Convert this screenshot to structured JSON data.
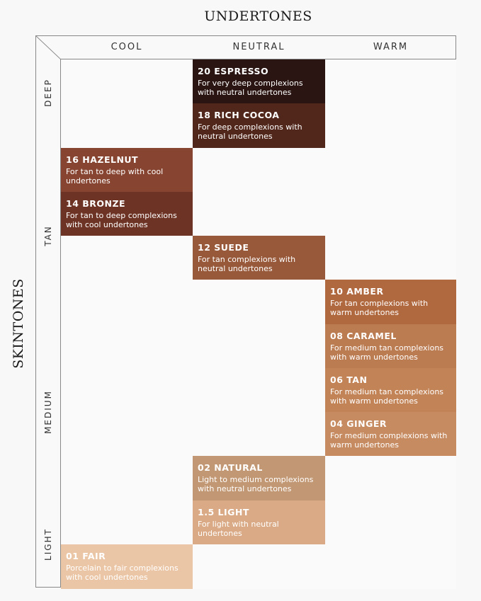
{
  "header": {
    "undertones_title": "UNDERTONES",
    "skintones_title": "SKINTONES"
  },
  "columns": [
    "COOL",
    "NEUTRAL",
    "WARM"
  ],
  "row_groups": [
    {
      "label": "DEEP",
      "rows": [
        0,
        2
      ]
    },
    {
      "label": "TAN",
      "rows": [
        2,
        6
      ]
    },
    {
      "label": "MEDIUM",
      "rows": [
        6,
        10
      ]
    },
    {
      "label": "LIGHT",
      "rows": [
        10,
        12
      ]
    }
  ],
  "shades": [
    {
      "row": 0,
      "col": 1,
      "name": "20 ESPRESSO",
      "desc": "For very deep complexions with neutral undertones",
      "color": "#2a1512"
    },
    {
      "row": 1,
      "col": 1,
      "name": "18 RICH COCOA",
      "desc": "For deep complexions with neutral undertones",
      "color": "#52271b"
    },
    {
      "row": 2,
      "col": 0,
      "name": "16 HAZELNUT",
      "desc": "For tan to deep with cool undertones",
      "color": "#874430"
    },
    {
      "row": 3,
      "col": 0,
      "name": "14 BRONZE",
      "desc": "For tan to deep complexions with cool undertones",
      "color": "#6d3425"
    },
    {
      "row": 4,
      "col": 1,
      "name": "12 SUEDE",
      "desc": "For tan complexions with neutral undertones",
      "color": "#98593a"
    },
    {
      "row": 5,
      "col": 2,
      "name": "10 AMBER",
      "desc": "For tan complexions with warm undertones",
      "color": "#b0683f"
    },
    {
      "row": 6,
      "col": 2,
      "name": "08 CARAMEL",
      "desc": "For medium tan complexions with warm undertones",
      "color": "#bc7c52"
    },
    {
      "row": 7,
      "col": 2,
      "name": "06 TAN",
      "desc": "For medium tan complexions with warm undertones",
      "color": "#c28357"
    },
    {
      "row": 8,
      "col": 2,
      "name": "04 GINGER",
      "desc": "For medium complexions with warm undertones",
      "color": "#c68b61"
    },
    {
      "row": 9,
      "col": 1,
      "name": "02 NATURAL",
      "desc": "Light to medium complexions with neutral undertones",
      "color": "#c29773"
    },
    {
      "row": 10,
      "col": 1,
      "name": "1.5 LIGHT",
      "desc": "For light with neutral undertones",
      "color": "#d9aa85"
    },
    {
      "row": 11,
      "col": 0,
      "name": "01 FAIR",
      "desc": "Porcelain to fair complexions with cool undertones",
      "color": "#ebc6a6"
    }
  ]
}
